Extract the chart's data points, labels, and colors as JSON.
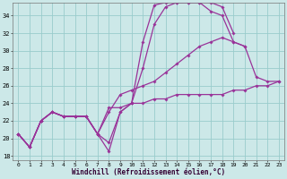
{
  "background_color": "#cce8e8",
  "grid_color": "#99cccc",
  "line_color": "#993399",
  "xlim": [
    -0.5,
    23.5
  ],
  "ylim": [
    17.5,
    35.5
  ],
  "xticks": [
    0,
    1,
    2,
    3,
    4,
    5,
    6,
    7,
    8,
    9,
    10,
    11,
    12,
    13,
    14,
    15,
    16,
    17,
    18,
    19,
    20,
    21,
    22,
    23
  ],
  "yticks": [
    18,
    20,
    22,
    24,
    26,
    28,
    30,
    32,
    34
  ],
  "xlabel": "Windchill (Refroidissement éolien,°C)",
  "series": [
    {
      "x": [
        0,
        1,
        2,
        3,
        4,
        5,
        6,
        7,
        8,
        9,
        10,
        11,
        12,
        13,
        14,
        15,
        16,
        17,
        18,
        19
      ],
      "y": [
        20.5,
        19.0,
        22.0,
        23.0,
        22.5,
        22.5,
        22.5,
        20.5,
        19.5,
        23.0,
        24.0,
        31.0,
        35.2,
        35.5,
        35.5,
        35.5,
        35.5,
        35.5,
        35.0,
        32.0
      ]
    },
    {
      "x": [
        0,
        1,
        2,
        3,
        4,
        5,
        6,
        7,
        8,
        9,
        10,
        11,
        12,
        13,
        14,
        15,
        16,
        17,
        18,
        19,
        20
      ],
      "y": [
        20.5,
        19.0,
        22.0,
        23.0,
        22.5,
        22.5,
        22.5,
        20.5,
        18.5,
        23.0,
        24.0,
        28.0,
        33.0,
        35.0,
        35.5,
        35.5,
        35.5,
        34.5,
        34.0,
        31.0,
        30.5
      ]
    },
    {
      "x": [
        0,
        1,
        2,
        3,
        4,
        5,
        6,
        7,
        8,
        9,
        10,
        11,
        12,
        13,
        14,
        15,
        16,
        17,
        18,
        19,
        20,
        21,
        22,
        23
      ],
      "y": [
        20.5,
        19.0,
        22.0,
        23.0,
        22.5,
        22.5,
        22.5,
        20.5,
        23.0,
        25.0,
        25.5,
        26.0,
        26.5,
        27.5,
        28.5,
        29.5,
        30.5,
        31.0,
        31.5,
        31.0,
        30.5,
        27.0,
        26.5,
        26.5
      ]
    },
    {
      "x": [
        0,
        1,
        2,
        3,
        4,
        5,
        6,
        7,
        8,
        9,
        10,
        11,
        12,
        13,
        14,
        15,
        16,
        17,
        18,
        19,
        20,
        21,
        22,
        23
      ],
      "y": [
        20.5,
        19.0,
        22.0,
        23.0,
        22.5,
        22.5,
        22.5,
        20.5,
        23.5,
        23.5,
        24.0,
        24.0,
        24.5,
        24.5,
        25.0,
        25.0,
        25.0,
        25.0,
        25.0,
        25.5,
        25.5,
        26.0,
        26.0,
        26.5
      ]
    }
  ]
}
